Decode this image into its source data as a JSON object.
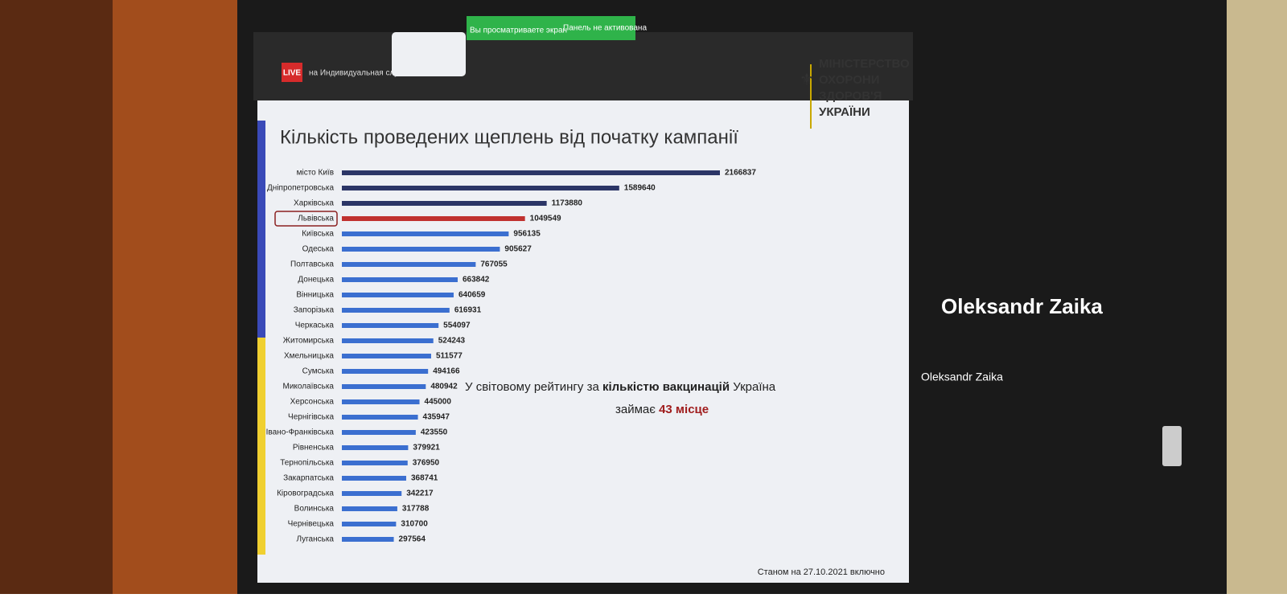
{
  "meeting": {
    "live": "LIVE",
    "meeting_title": "на Индивидуальная служба г...",
    "screen_notice": "Вы просматриваете экран",
    "panel_notice": "Панель не активована",
    "participant_large": "Oleksandr Zaika",
    "participant_small": "Oleksandr Zaika"
  },
  "logo": {
    "lines": [
      "МІНІСТЕРСТВО",
      "ОХОРОНИ",
      "ЗДОРОВ'Я",
      "УКРАЇНИ"
    ]
  },
  "chart_data": {
    "type": "hbar",
    "title": "Кількість проведених щеплень від початку кампанії",
    "categories": [
      "місто Київ",
      "Дніпропетровська",
      "Харківська",
      "Львівська",
      "Київська",
      "Одеська",
      "Полтавська",
      "Донецька",
      "Вінницька",
      "Запорізька",
      "Черкаська",
      "Житомирська",
      "Хмельницька",
      "Сумська",
      "Миколаївська",
      "Херсонська",
      "Чернігівська",
      "Івано-Франківська",
      "Рівненська",
      "Тернопільська",
      "Закарпатська",
      "Кіровоградська",
      "Волинська",
      "Чернівецька",
      "Луганська"
    ],
    "values": [
      2166837,
      1589640,
      1173880,
      1049549,
      956135,
      905627,
      767055,
      663842,
      640659,
      616931,
      554097,
      524243,
      511577,
      494166,
      480942,
      445000,
      435947,
      423550,
      379921,
      376950,
      368741,
      342217,
      317788,
      310700,
      297564
    ],
    "colors": [
      "#2b3566",
      "#2b3566",
      "#2b3566",
      "#c0312f",
      "#3b6fd0",
      "#3b6fd0",
      "#3b6fd0",
      "#3b6fd0",
      "#3b6fd0",
      "#3b6fd0",
      "#3b6fd0",
      "#3b6fd0",
      "#3b6fd0",
      "#3b6fd0",
      "#3b6fd0",
      "#3b6fd0",
      "#3b6fd0",
      "#3b6fd0",
      "#3b6fd0",
      "#3b6fd0",
      "#3b6fd0",
      "#3b6fd0",
      "#3b6fd0",
      "#3b6fd0",
      "#3b6fd0"
    ],
    "annotation": {
      "line1": [
        "У світовому рейтингу за ",
        "кількістю вакцинацій",
        " Україна"
      ],
      "line2": [
        "займає ",
        "43 місце"
      ]
    },
    "footnote": "Станом на 27.10.2021 включно"
  }
}
